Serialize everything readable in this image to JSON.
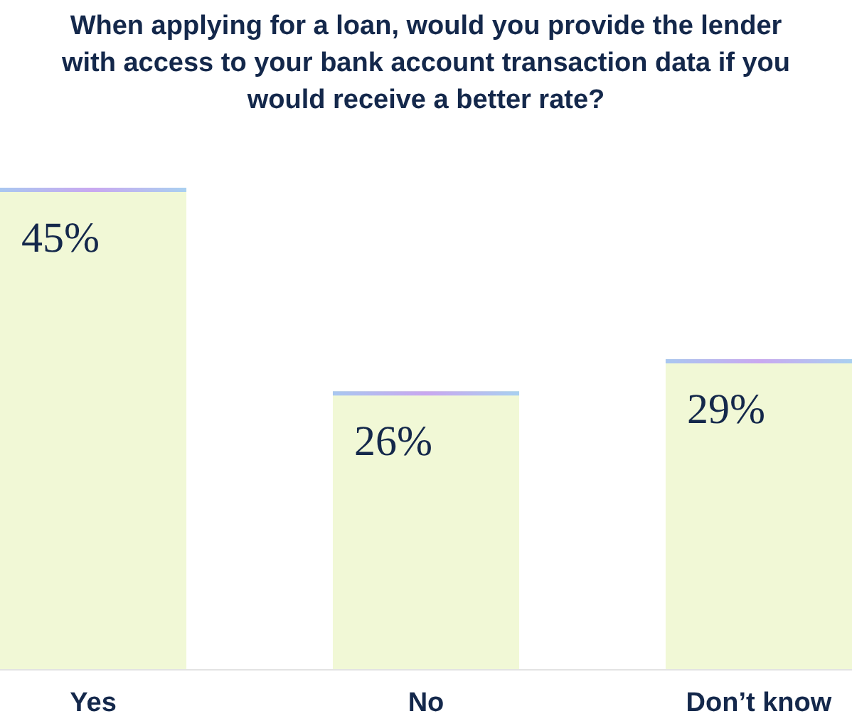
{
  "chart_data": {
    "type": "bar",
    "title": "When applying for a loan, would you provide the lender with access to your bank account transaction data if you would receive a better rate?",
    "categories": [
      "Yes",
      "No",
      "Don’t know"
    ],
    "values": [
      45,
      26,
      29
    ],
    "color": "#f1f8d6",
    "value_labels": [
      "45%",
      "26%",
      "29%"
    ]
  }
}
